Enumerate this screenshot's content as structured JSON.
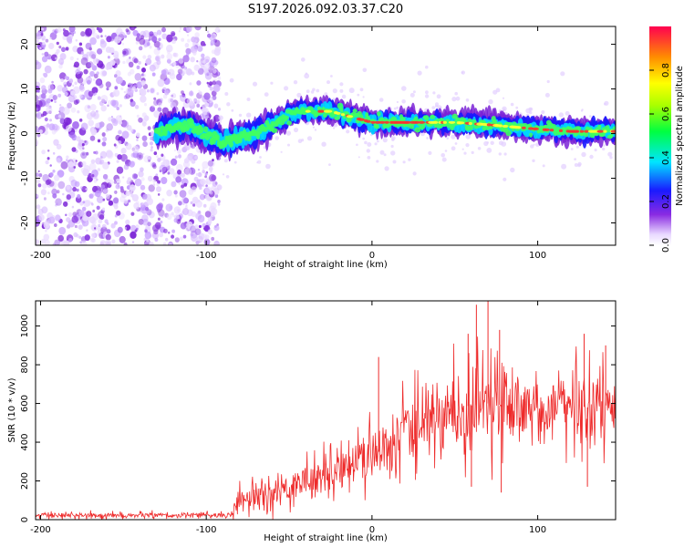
{
  "figure": {
    "title": "S197.2026.092.03.37.C20"
  },
  "chart_data": [
    {
      "type": "heatmap",
      "name": "spectrogram",
      "title": "",
      "xlabel": "Height of straight line (km)",
      "ylabel": "Frequency (Hz)",
      "xlim": [
        -203,
        147
      ],
      "ylim": [
        -25,
        24
      ],
      "xticks": [
        -200,
        -100,
        0,
        100
      ],
      "yticks": [
        20,
        10,
        0,
        -10,
        -20
      ],
      "noise_region_x": [
        -203,
        -92
      ],
      "signal_track": [
        {
          "x": -130,
          "y": 0
        },
        {
          "x": -115,
          "y": 2
        },
        {
          "x": -100,
          "y": 0
        },
        {
          "x": -90,
          "y": -2
        },
        {
          "x": -80,
          "y": -1
        },
        {
          "x": -70,
          "y": 0
        },
        {
          "x": -55,
          "y": 3
        },
        {
          "x": -45,
          "y": 5
        },
        {
          "x": -35,
          "y": 5
        },
        {
          "x": -25,
          "y": 5
        },
        {
          "x": -15,
          "y": 4
        },
        {
          "x": -5,
          "y": 3
        },
        {
          "x": 0,
          "y": 2.5
        },
        {
          "x": 20,
          "y": 2.5
        },
        {
          "x": 35,
          "y": 2.5
        },
        {
          "x": 50,
          "y": 2.5
        },
        {
          "x": 70,
          "y": 2
        },
        {
          "x": 85,
          "y": 1.5
        },
        {
          "x": 100,
          "y": 1
        },
        {
          "x": 120,
          "y": 0.5
        },
        {
          "x": 140,
          "y": 0.5
        }
      ],
      "colorbar": {
        "label": "Normalized spectral amplitude",
        "range": [
          0.0,
          1.0
        ],
        "ticks": [
          "0.0",
          "0.2",
          "0.4",
          "0.6",
          "0.8"
        ]
      }
    },
    {
      "type": "line",
      "name": "snr",
      "title": "",
      "xlabel": "Height of straight line (km)",
      "ylabel": "SNR (10 * v/v)",
      "xlim": [
        -203,
        147
      ],
      "ylim": [
        0,
        1130
      ],
      "xticks": [
        -200,
        -100,
        0,
        100
      ],
      "yticks": [
        0,
        200,
        400,
        600,
        800,
        1000
      ],
      "color": "#ee2b2b",
      "envelope": {
        "x": [
          -203,
          -160,
          -120,
          -85,
          -80,
          -70,
          -60,
          -50,
          -40,
          -30,
          -20,
          -10,
          0,
          10,
          20,
          30,
          40,
          50,
          60,
          70,
          80,
          90,
          100,
          110,
          120,
          130,
          140,
          147
        ],
        "mean": [
          22,
          22,
          22,
          22,
          110,
          120,
          135,
          170,
          200,
          230,
          260,
          290,
          330,
          380,
          440,
          500,
          550,
          575,
          590,
          600,
          590,
          580,
          570,
          580,
          590,
          580,
          590,
          590
        ],
        "spread": [
          14,
          14,
          14,
          14,
          60,
          70,
          80,
          90,
          100,
          110,
          110,
          120,
          140,
          150,
          160,
          180,
          200,
          230,
          260,
          250,
          200,
          150,
          140,
          150,
          160,
          170,
          170,
          170
        ]
      },
      "spikes": [
        {
          "x": 4,
          "y": 840
        },
        {
          "x": 63,
          "y": 1110
        },
        {
          "x": 70,
          "y": 1130
        },
        {
          "x": 58,
          "y": 960
        },
        {
          "x": 77,
          "y": 980
        },
        {
          "x": 128,
          "y": 960
        },
        {
          "x": 141,
          "y": 900
        },
        {
          "x": 60,
          "y": 170
        },
        {
          "x": 78,
          "y": 140
        },
        {
          "x": 130,
          "y": 170
        }
      ]
    }
  ]
}
